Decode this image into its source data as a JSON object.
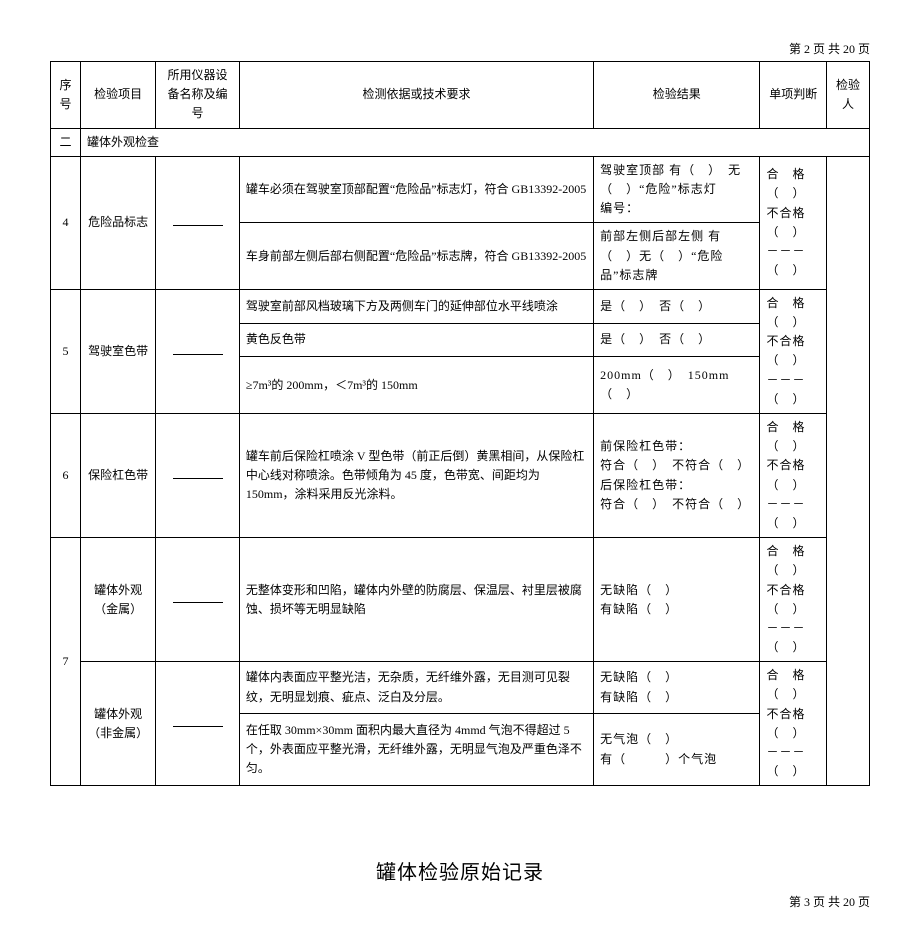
{
  "pageHeader": "第 2 页 共 20 页",
  "headers": {
    "seq": "序号",
    "item": "检验项目",
    "inst": "所用仪器设备名称及编号",
    "req": "检测依据或技术要求",
    "res": "检验结果",
    "judge": "单项判断",
    "insp": "检验人"
  },
  "sectionRow": {
    "seq": "二",
    "title": "罐体外观检查"
  },
  "rows": [
    {
      "seq": "4",
      "item": "危险品标志",
      "req1": "罐车必须在驾驶室顶部配置“危险品”标志灯，符合 GB13392-2005",
      "res1": "驾驶室顶部 有（　）　无（　）“危险”标志灯\n编号：",
      "req2": "车身前部左侧后部右侧配置“危险品”标志牌，符合 GB13392-2005",
      "res2": "前部左侧后部左侧 有（　）无（　）“危险品”标志牌",
      "judge": "合　格（　）\n不合格（　）\n－－－（　）"
    },
    {
      "seq": "5",
      "item": "驾驶室色带",
      "reqA": "驾驶室前部风档玻璃下方及两侧车门的延伸部位水平线喷涂",
      "resA": "是（　）　否（　）",
      "reqB": "黄色反色带",
      "resB": "是（　）　否（　）",
      "reqC": "≥7m³的 200mm，＜7m³的 150mm",
      "resC": "200mm（　）　150mm（　）",
      "judge": "合　格（　）\n不合格（　）\n－－－（　）"
    },
    {
      "seq": "6",
      "item": "保险杠色带",
      "req": "罐车前后保险杠喷涂 V 型色带（前正后倒）黄黑相间，从保险杠中心线对称喷涂。色带倾角为 45 度，色带宽、间距均为 150mm，涂料采用反光涂料。",
      "res": "前保险杠色带：\n符合（　）　不符合（　）\n后保险杠色带：\n符合（　）　不符合（　）",
      "judge": "合　格（　）\n不合格（　）\n－－－（　）"
    },
    {
      "seq": "7",
      "item1": "罐体外观\n（金属）",
      "req1": "无整体变形和凹陷，罐体内外壁的防腐层、保温层、衬里层被腐蚀、损坏等无明显缺陷",
      "res1": "无缺陷（　）\n有缺陷（　）",
      "judge1": "合　格（　）\n不合格（　）\n－－－（　）",
      "item2": "罐体外观\n（非金属）",
      "req2a": "罐体内表面应平整光洁，无杂质，无纤维外露，无目测可见裂纹，无明显划痕、疵点、泛白及分层。",
      "res2a": "无缺陷（　）\n有缺陷（　）",
      "req2b": "在任取 30mm×30mm 面积内最大直径为 4mmd 气泡不得超过 5 个，外表面应平整光滑，无纤维外露，无明显气泡及严重色泽不匀。",
      "res2b": "无气泡（　）\n有（　　　）个气泡",
      "judge2": "合　格（　）\n不合格（　）\n－－－（　）"
    }
  ],
  "bottomTitle": "罐体检验原始记录",
  "bottomFooter": "第 3 页 共 20 页"
}
